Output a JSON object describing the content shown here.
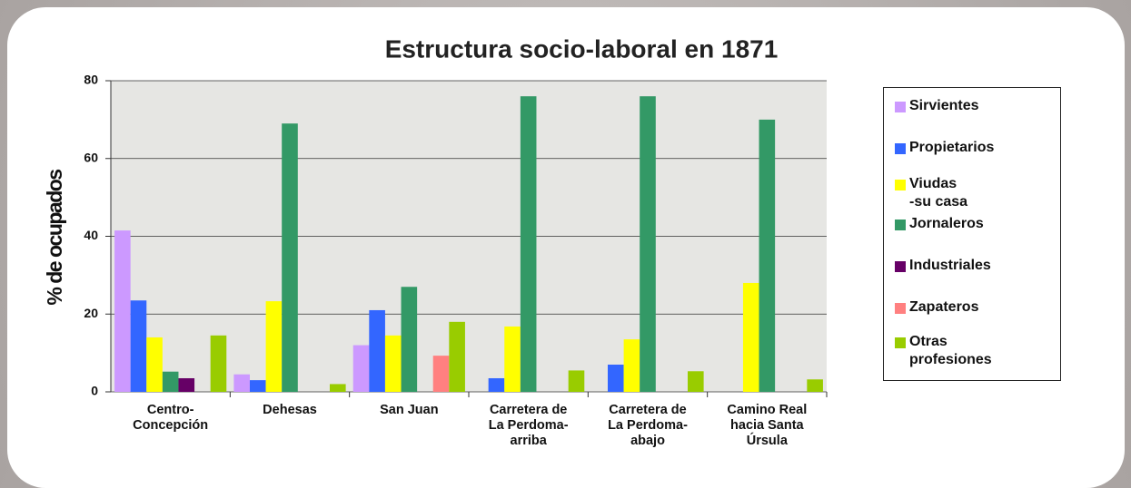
{
  "chart_data": {
    "type": "bar",
    "title": "Estructura socio-laboral en 1871",
    "y_label": "% de ocupados",
    "categories": [
      "Centro-\nConcepción",
      "Dehesas",
      "San Juan",
      "Carretera de\nLa Perdoma-\narriba",
      "Carretera de\nLa Perdoma-\nabajo",
      "Camino Real\nhacia Santa\nÚrsula"
    ],
    "series": [
      {
        "name": "Sirvientes",
        "color": "#cc99ff",
        "values": [
          41.5,
          4.5,
          12,
          0,
          0,
          0
        ]
      },
      {
        "name": "Propietarios",
        "color": "#3366ff",
        "values": [
          23.5,
          3,
          21,
          3.5,
          7,
          0
        ]
      },
      {
        "name": "Viudas\n-su casa",
        "color": "#ffff00",
        "values": [
          14,
          23.3,
          14.5,
          16.8,
          13.5,
          28
        ]
      },
      {
        "name": "Jornaleros",
        "color": "#339966",
        "values": [
          5.2,
          69,
          27,
          76,
          76,
          70
        ]
      },
      {
        "name": "Industriales",
        "color": "#660066",
        "values": [
          3.5,
          0,
          0,
          0,
          0,
          0
        ]
      },
      {
        "name": "Zapateros",
        "color": "#ff8080",
        "values": [
          0,
          0,
          9.3,
          0,
          0,
          0
        ]
      },
      {
        "name": "Otras\nprofesiones",
        "color": "#99cc00",
        "values": [
          14.5,
          2,
          18,
          5.5,
          5.3,
          3.2
        ]
      }
    ],
    "ylim": [
      0,
      80
    ],
    "yticks": [
      0,
      20,
      40,
      60,
      80
    ],
    "grid": true,
    "legend": "right"
  }
}
